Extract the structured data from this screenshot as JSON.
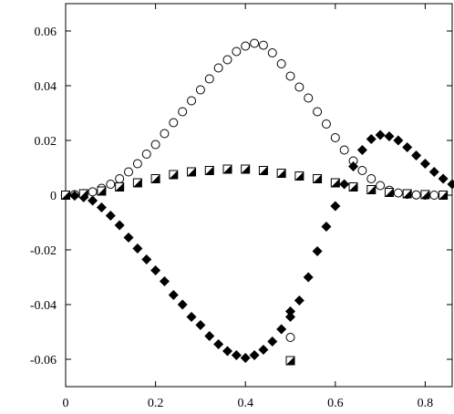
{
  "chart_data": {
    "type": "scatter",
    "title": "",
    "xlabel": "",
    "ylabel": "",
    "xlim": [
      0,
      0.86
    ],
    "ylim": [
      -0.07,
      0.07
    ],
    "grid": false,
    "legend": "none",
    "x_ticks": [
      {
        "value": 0,
        "label": "0"
      },
      {
        "value": 0.2,
        "label": "0.2"
      },
      {
        "value": 0.4,
        "label": "0.4"
      },
      {
        "value": 0.6,
        "label": "0.6"
      },
      {
        "value": 0.8,
        "label": "0.8"
      }
    ],
    "y_ticks": [
      {
        "value": -0.06,
        "label": "-0.06"
      },
      {
        "value": -0.04,
        "label": "-0.04"
      },
      {
        "value": -0.02,
        "label": "-0.02"
      },
      {
        "value": 0,
        "label": "0"
      },
      {
        "value": 0.02,
        "label": "0.02"
      },
      {
        "value": 0.04,
        "label": "0.04"
      },
      {
        "value": 0.06,
        "label": "0.06"
      }
    ],
    "series": [
      {
        "marker": "open-circle",
        "color": "#000000",
        "points": [
          [
            0.0,
            0.0
          ],
          [
            0.02,
            0.0002
          ],
          [
            0.04,
            0.0006
          ],
          [
            0.06,
            0.0012
          ],
          [
            0.08,
            0.0025
          ],
          [
            0.1,
            0.004
          ],
          [
            0.12,
            0.006
          ],
          [
            0.14,
            0.0085
          ],
          [
            0.16,
            0.0115
          ],
          [
            0.18,
            0.015
          ],
          [
            0.2,
            0.0185
          ],
          [
            0.22,
            0.0225
          ],
          [
            0.24,
            0.0265
          ],
          [
            0.26,
            0.0305
          ],
          [
            0.28,
            0.0345
          ],
          [
            0.3,
            0.0385
          ],
          [
            0.32,
            0.0425
          ],
          [
            0.34,
            0.0465
          ],
          [
            0.36,
            0.0495
          ],
          [
            0.38,
            0.0525
          ],
          [
            0.4,
            0.0545
          ],
          [
            0.42,
            0.0555
          ],
          [
            0.44,
            0.0548
          ],
          [
            0.46,
            0.052
          ],
          [
            0.48,
            0.048
          ],
          [
            0.5,
            0.0435
          ],
          [
            0.52,
            0.0395
          ],
          [
            0.54,
            0.0355
          ],
          [
            0.56,
            0.0305
          ],
          [
            0.58,
            0.026
          ],
          [
            0.6,
            0.021
          ],
          [
            0.62,
            0.0165
          ],
          [
            0.64,
            0.0125
          ],
          [
            0.66,
            0.009
          ],
          [
            0.68,
            0.006
          ],
          [
            0.7,
            0.0035
          ],
          [
            0.72,
            0.0018
          ],
          [
            0.74,
            0.0008
          ],
          [
            0.76,
            0.0003
          ],
          [
            0.78,
            0.0001
          ],
          [
            0.8,
            0.0
          ],
          [
            0.82,
            0.0
          ],
          [
            0.84,
            0.0
          ],
          [
            0.5,
            -0.052
          ]
        ]
      },
      {
        "marker": "filled-diamond",
        "color": "#000000",
        "points": [
          [
            0.0,
            0.0
          ],
          [
            0.02,
            -0.0002
          ],
          [
            0.04,
            -0.0008
          ],
          [
            0.06,
            -0.002
          ],
          [
            0.08,
            -0.0045
          ],
          [
            0.1,
            -0.0075
          ],
          [
            0.12,
            -0.011
          ],
          [
            0.14,
            -0.0155
          ],
          [
            0.16,
            -0.0195
          ],
          [
            0.18,
            -0.0235
          ],
          [
            0.2,
            -0.0275
          ],
          [
            0.22,
            -0.0315
          ],
          [
            0.24,
            -0.0365
          ],
          [
            0.26,
            -0.04
          ],
          [
            0.28,
            -0.0445
          ],
          [
            0.3,
            -0.0475
          ],
          [
            0.32,
            -0.0515
          ],
          [
            0.34,
            -0.0545
          ],
          [
            0.36,
            -0.057
          ],
          [
            0.38,
            -0.0585
          ],
          [
            0.4,
            -0.0595
          ],
          [
            0.42,
            -0.0585
          ],
          [
            0.44,
            -0.0565
          ],
          [
            0.46,
            -0.0535
          ],
          [
            0.48,
            -0.049
          ],
          [
            0.5,
            -0.0445
          ],
          [
            0.52,
            -0.0385
          ],
          [
            0.54,
            -0.03
          ],
          [
            0.56,
            -0.0205
          ],
          [
            0.58,
            -0.0115
          ],
          [
            0.6,
            -0.004
          ],
          [
            0.62,
            0.004
          ],
          [
            0.64,
            0.0105
          ],
          [
            0.66,
            0.0165
          ],
          [
            0.68,
            0.0205
          ],
          [
            0.7,
            0.022
          ],
          [
            0.72,
            0.0215
          ],
          [
            0.74,
            0.02
          ],
          [
            0.76,
            0.0175
          ],
          [
            0.78,
            0.0145
          ],
          [
            0.8,
            0.0115
          ],
          [
            0.82,
            0.0085
          ],
          [
            0.84,
            0.006
          ],
          [
            0.86,
            0.004
          ],
          [
            0.5,
            -0.0425
          ]
        ]
      },
      {
        "marker": "half-filled-square",
        "color": "#000000",
        "points": [
          [
            0.0,
            0.0
          ],
          [
            0.04,
            0.0005
          ],
          [
            0.08,
            0.0015
          ],
          [
            0.12,
            0.003
          ],
          [
            0.16,
            0.0045
          ],
          [
            0.2,
            0.006
          ],
          [
            0.24,
            0.0075
          ],
          [
            0.28,
            0.0085
          ],
          [
            0.32,
            0.009
          ],
          [
            0.36,
            0.0095
          ],
          [
            0.4,
            0.0095
          ],
          [
            0.44,
            0.009
          ],
          [
            0.48,
            0.008
          ],
          [
            0.52,
            0.007
          ],
          [
            0.56,
            0.006
          ],
          [
            0.6,
            0.0045
          ],
          [
            0.64,
            0.003
          ],
          [
            0.68,
            0.002
          ],
          [
            0.72,
            0.001
          ],
          [
            0.76,
            0.0005
          ],
          [
            0.8,
            0.0002
          ],
          [
            0.84,
            0.0
          ],
          [
            0.5,
            -0.0605
          ]
        ]
      }
    ]
  }
}
